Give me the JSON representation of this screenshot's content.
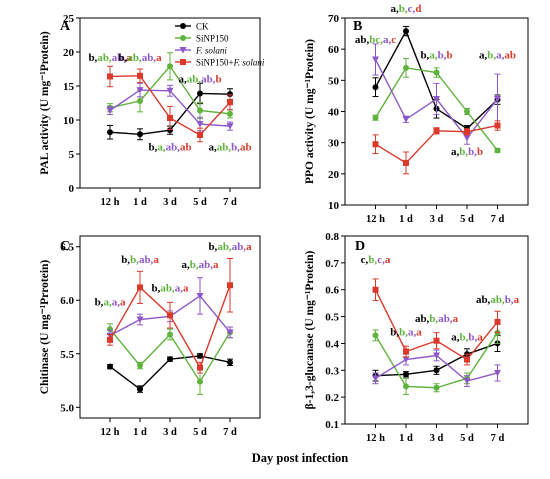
{
  "figure": {
    "shared_xlabel": "Day post infection",
    "legend": [
      {
        "name": "CK",
        "color": "#000000",
        "marker": "circle"
      },
      {
        "name": "SiNP150",
        "color": "#5fb33d",
        "marker": "circle"
      },
      {
        "name": "F. solani",
        "color": "#8e57c9",
        "marker": "triangle",
        "italic": true
      },
      {
        "name": "SiNP150+F. solani",
        "color": "#d93a2c",
        "marker": "square",
        "italic_part": "F. solani"
      }
    ]
  },
  "chart_data": [
    {
      "type": "line",
      "panel": "A",
      "ylabel": "PAL activity (U mg⁻¹Protein)",
      "categories": [
        "12 h",
        "1 d",
        "3 d",
        "5 d",
        "7 d"
      ],
      "ylim": [
        0,
        25
      ],
      "yticks": [
        0,
        5,
        10,
        15,
        20,
        25
      ],
      "legend_position": "top-center",
      "series": [
        {
          "name": "CK",
          "color": "#000000",
          "values": [
            8.2,
            7.9,
            8.5,
            13.9,
            13.8
          ],
          "errors": [
            1.0,
            0.8,
            0.6,
            1.5,
            0.8
          ]
        },
        {
          "name": "SiNP150",
          "color": "#5fb33d",
          "values": [
            11.8,
            12.8,
            17.9,
            11.4,
            10.9
          ],
          "errors": [
            0.6,
            1.6,
            2.0,
            1.2,
            0.6
          ]
        },
        {
          "name": "F. solani",
          "color": "#8e57c9",
          "values": [
            11.4,
            14.4,
            14.3,
            9.4,
            9.1
          ],
          "errors": [
            0.6,
            1.0,
            0.8,
            1.0,
            0.6
          ]
        },
        {
          "name": "SiNP150+F. solani",
          "color": "#d93a2c",
          "values": [
            16.4,
            16.5,
            10.3,
            7.8,
            12.6
          ],
          "errors": [
            1.5,
            1.0,
            1.7,
            1.0,
            1.1
          ]
        }
      ],
      "annotations": [
        {
          "at": "12 h",
          "letters": [
            "b",
            "ab",
            "ab",
            "a"
          ],
          "y": 18.7
        },
        {
          "at": "1 d",
          "letters": [
            "b",
            "ab",
            "ab",
            "a"
          ],
          "y": 18.7
        },
        {
          "at": "5 d",
          "letters": [
            "a",
            "ab",
            "ab",
            "b"
          ],
          "y": 15.5
        },
        {
          "at": "3 d",
          "letters": [
            "b",
            "a",
            "ab",
            "ab"
          ],
          "y": 5.5
        },
        {
          "at": "7 d",
          "letters": [
            "a",
            "ab",
            "b",
            "ab"
          ],
          "y": 5.5
        }
      ]
    },
    {
      "type": "line",
      "panel": "B",
      "ylabel": "PPO activity (U mg⁻¹Protein)",
      "categories": [
        "12 h",
        "1 d",
        "3 d",
        "5 d",
        "7 d"
      ],
      "ylim": [
        10,
        70
      ],
      "yticks": [
        10,
        20,
        30,
        40,
        50,
        60,
        70
      ],
      "series": [
        {
          "name": "CK",
          "color": "#000000",
          "values": [
            47.8,
            65.8,
            40.9,
            34.5,
            43.8
          ],
          "errors": [
            3.0,
            1.5,
            3.0,
            1.0,
            1.5
          ]
        },
        {
          "name": "SiNP150",
          "color": "#5fb33d",
          "values": [
            38.0,
            54.0,
            52.5,
            40.0,
            27.5
          ],
          "errors": [
            0.8,
            3.0,
            1.5,
            1.0,
            0.6
          ]
        },
        {
          "name": "F. solani",
          "color": "#8e57c9",
          "values": [
            56.7,
            37.5,
            44.0,
            31.5,
            44.0
          ],
          "errors": [
            5.0,
            1.0,
            5.0,
            2.0,
            8.0
          ]
        },
        {
          "name": "SiNP150+F. solani",
          "color": "#d93a2c",
          "values": [
            29.5,
            23.5,
            33.8,
            33.5,
            35.5
          ],
          "errors": [
            3.0,
            3.5,
            1.0,
            1.0,
            1.5
          ]
        }
      ],
      "annotations": [
        {
          "at": "12 h",
          "letters": [
            "ab",
            "bc",
            "a",
            "c"
          ],
          "y": 62
        },
        {
          "at": "1 d",
          "letters": [
            "a",
            "b",
            "c",
            "d"
          ],
          "y": 72
        },
        {
          "at": "3 d",
          "letters": [
            "b",
            "a",
            "b",
            "b"
          ],
          "y": 57
        },
        {
          "at": "7 d",
          "letters": [
            "a",
            "b",
            "a",
            "ab"
          ],
          "y": 57
        },
        {
          "at": "5 d",
          "letters": [
            "a",
            "b",
            "b",
            "b"
          ],
          "y": 26
        }
      ]
    },
    {
      "type": "line",
      "panel": "C",
      "ylabel": "Chitinase (U mg⁻¹Prrotein)",
      "categories": [
        "12 h",
        "1 d",
        "3 d",
        "5 d",
        "7 d"
      ],
      "ylim": [
        4.9,
        6.6
      ],
      "yticks": [
        5.0,
        5.5,
        6.0,
        6.5
      ],
      "series": [
        {
          "name": "CK",
          "color": "#000000",
          "values": [
            5.38,
            5.17,
            5.45,
            5.48,
            5.42
          ],
          "errors": [
            0.02,
            0.03,
            0.02,
            0.02,
            0.03
          ]
        },
        {
          "name": "SiNP150",
          "color": "#5fb33d",
          "values": [
            5.73,
            5.39,
            5.68,
            5.24,
            5.7
          ],
          "errors": [
            0.05,
            0.03,
            0.05,
            0.12,
            0.05
          ]
        },
        {
          "name": "F. solani",
          "color": "#8e57c9",
          "values": [
            5.67,
            5.82,
            5.85,
            6.04,
            5.7
          ],
          "errors": [
            0.05,
            0.05,
            0.05,
            0.17,
            0.05
          ]
        },
        {
          "name": "SiNP150+F. solani",
          "color": "#d93a2c",
          "values": [
            5.63,
            6.12,
            5.86,
            5.37,
            6.14
          ],
          "errors": [
            0.05,
            0.15,
            0.12,
            0.05,
            0.25
          ]
        }
      ],
      "annotations": [
        {
          "at": "12 h",
          "letters": [
            "b",
            "a",
            "a",
            "a"
          ],
          "y": 5.95
        },
        {
          "at": "1 d",
          "letters": [
            "b",
            "b",
            "ab",
            "a"
          ],
          "y": 6.35
        },
        {
          "at": "3 d",
          "letters": [
            "b",
            "ab",
            "a",
            "a"
          ],
          "y": 6.08
        },
        {
          "at": "5 d",
          "letters": [
            "a",
            "b",
            "ab",
            "a"
          ],
          "y": 6.3
        },
        {
          "at": "7 d",
          "letters": [
            "b",
            "ab",
            "ab",
            "a"
          ],
          "y": 6.47
        }
      ]
    },
    {
      "type": "line",
      "panel": "D",
      "ylabel": "β-1,3-glucanase  (U mg⁻¹Protein)",
      "categories": [
        "12 h",
        "1 d",
        "3 d",
        "5 d",
        "7 d"
      ],
      "ylim": [
        0.1,
        0.8
      ],
      "yticks": [
        0.1,
        0.2,
        0.3,
        0.4,
        0.5,
        0.6,
        0.7,
        0.8
      ],
      "series": [
        {
          "name": "CK",
          "color": "#000000",
          "values": [
            0.28,
            0.285,
            0.3,
            0.36,
            0.4
          ],
          "errors": [
            0.02,
            0.01,
            0.015,
            0.02,
            0.03
          ]
        },
        {
          "name": "SiNP150",
          "color": "#5fb33d",
          "values": [
            0.43,
            0.24,
            0.235,
            0.27,
            0.44
          ],
          "errors": [
            0.02,
            0.03,
            0.015,
            0.02,
            0.04
          ]
        },
        {
          "name": "F. solani",
          "color": "#8e57c9",
          "values": [
            0.27,
            0.34,
            0.355,
            0.26,
            0.29
          ],
          "errors": [
            0.02,
            0.02,
            0.02,
            0.02,
            0.03
          ]
        },
        {
          "name": "SiNP150+F. solani",
          "color": "#d93a2c",
          "values": [
            0.6,
            0.37,
            0.41,
            0.34,
            0.48
          ],
          "errors": [
            0.04,
            0.02,
            0.03,
            0.02,
            0.04
          ]
        }
      ],
      "annotations": [
        {
          "at": "12 h",
          "letters": [
            "c",
            "b",
            "c",
            "a"
          ],
          "y": 0.7
        },
        {
          "at": "1 d",
          "letters": [
            "b",
            "b",
            "a",
            "a"
          ],
          "y": 0.43
        },
        {
          "at": "3 d",
          "letters": [
            "ab",
            "b",
            "ab",
            "a"
          ],
          "y": 0.48
        },
        {
          "at": "5 d",
          "letters": [
            "a",
            "b",
            "b",
            "a"
          ],
          "y": 0.41
        },
        {
          "at": "7 d",
          "letters": [
            "ab",
            "ab",
            "b",
            "a"
          ],
          "y": 0.55
        }
      ]
    }
  ]
}
